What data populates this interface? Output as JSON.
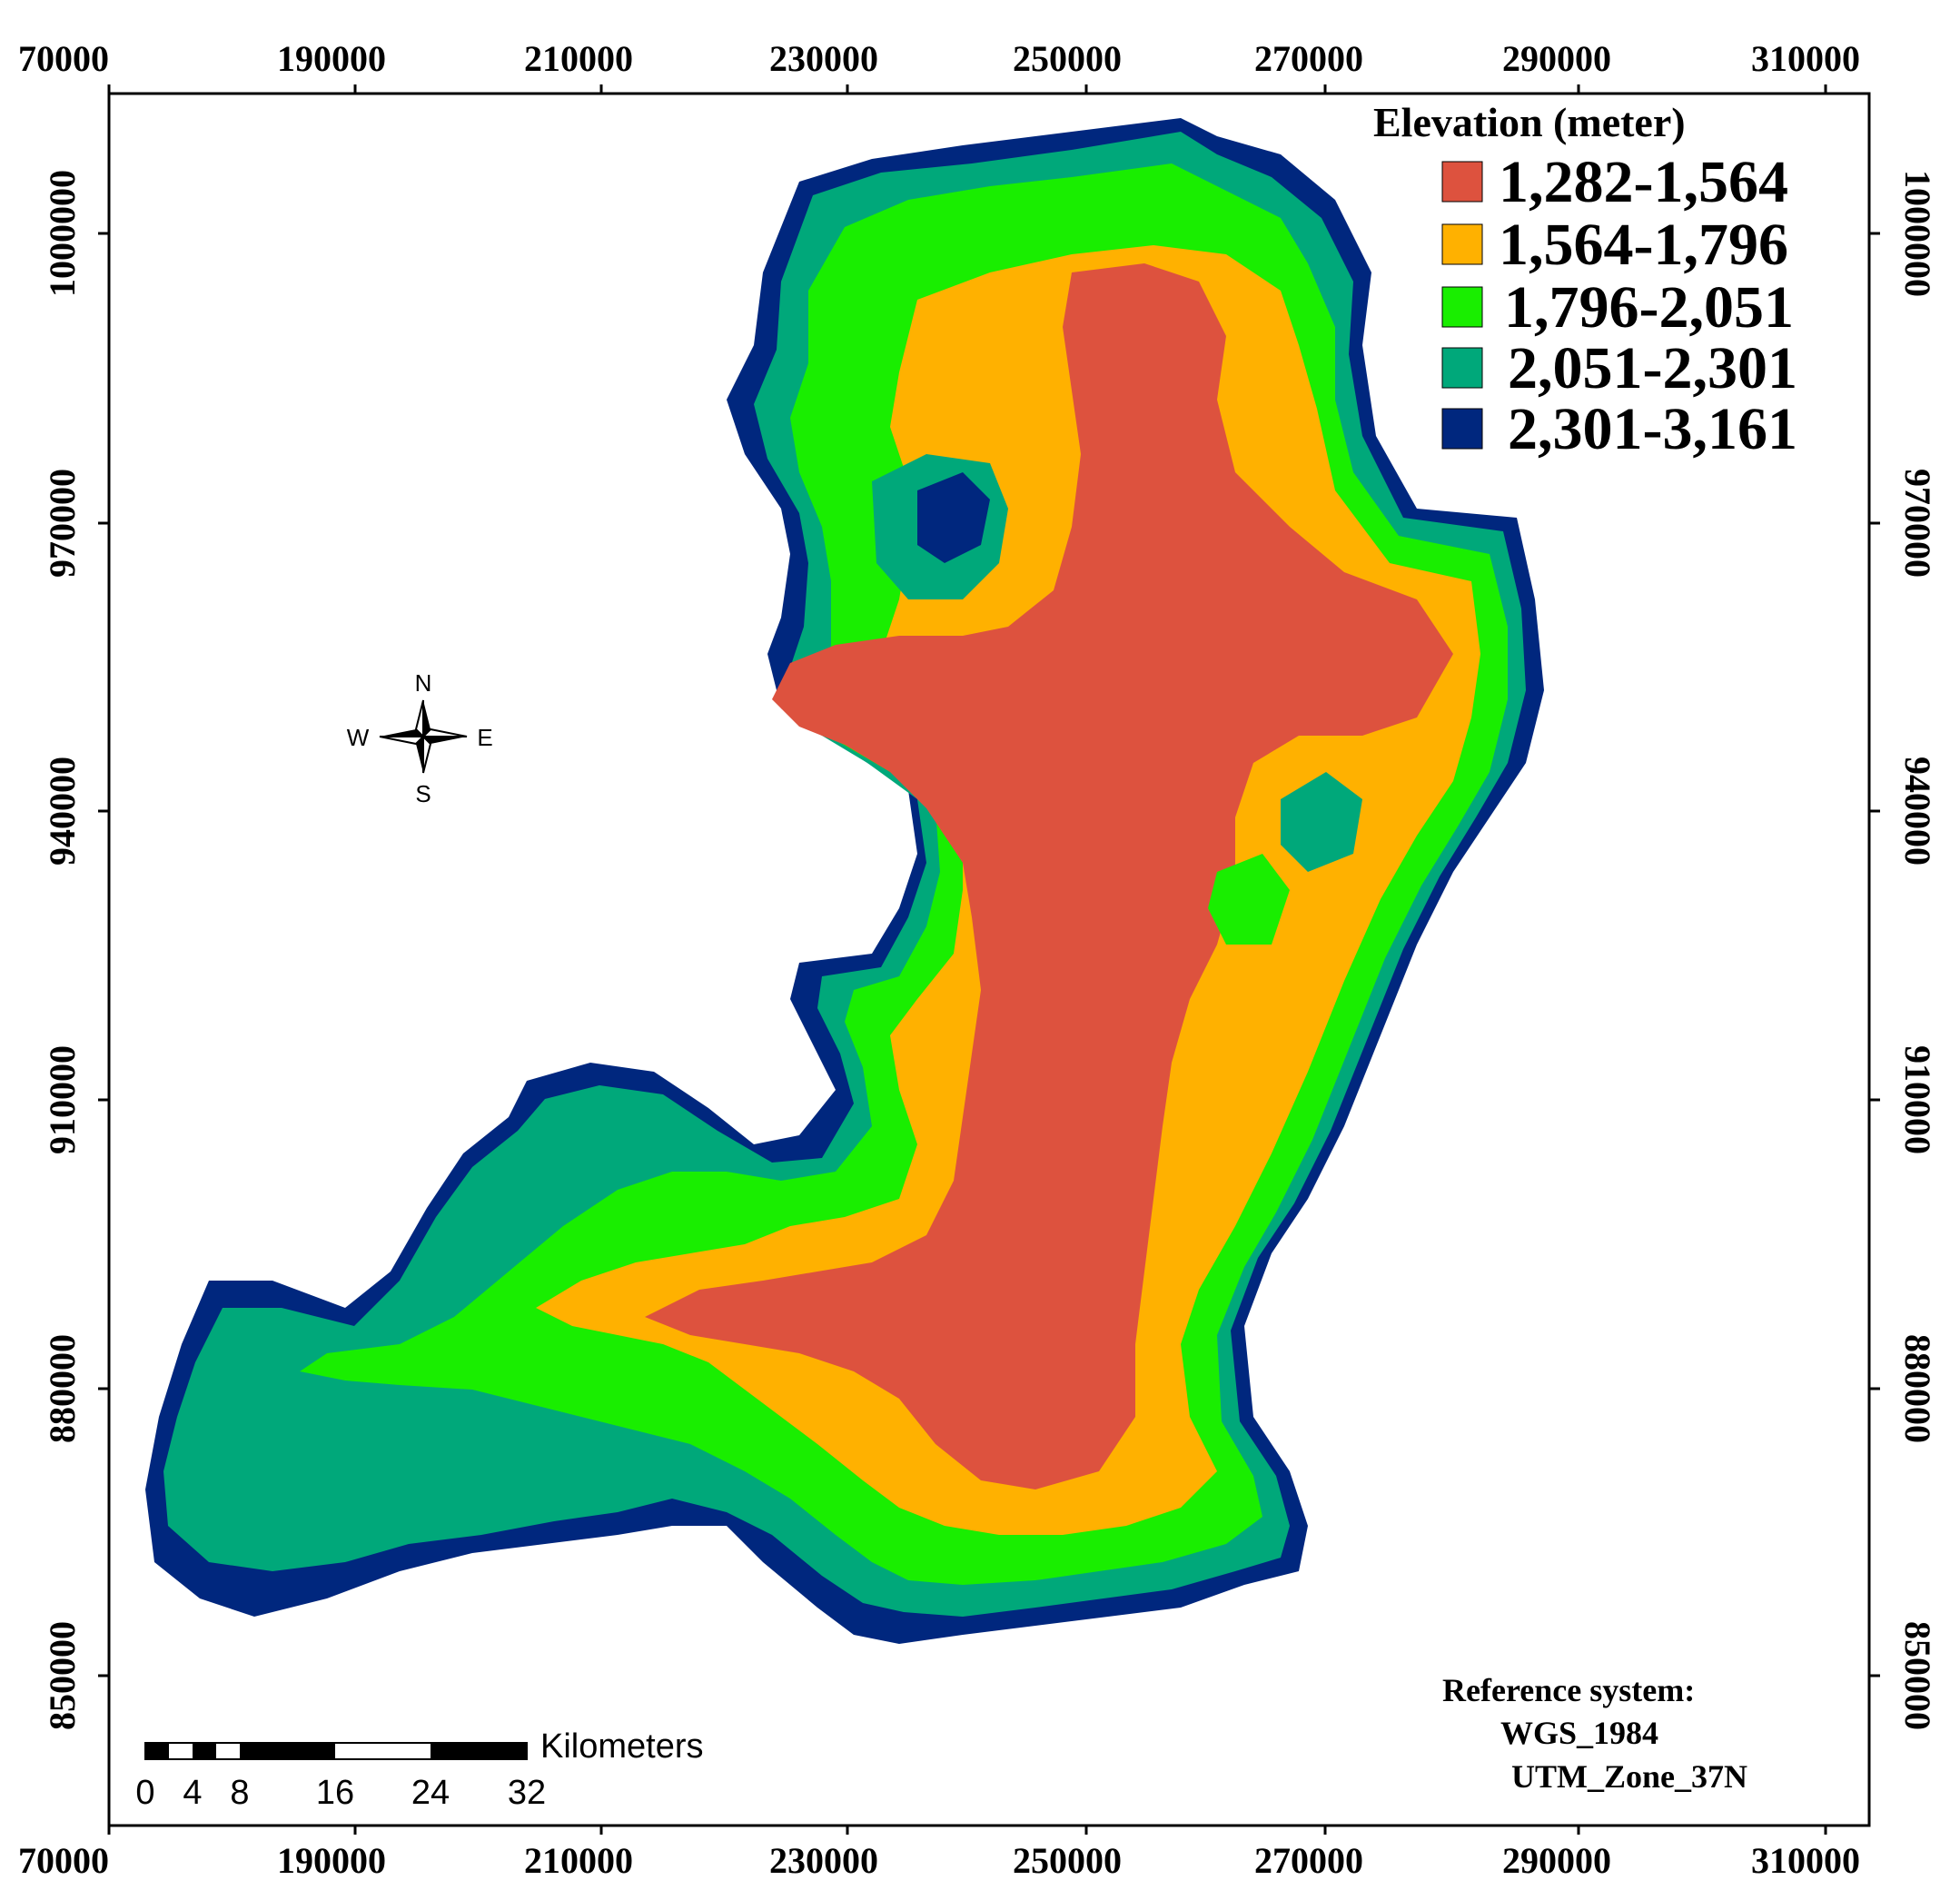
{
  "map": {
    "x_ticks": [
      "70000",
      "190000",
      "210000",
      "230000",
      "250000",
      "270000",
      "290000",
      "310000"
    ],
    "y_ticks": [
      "1000000",
      "970000",
      "940000",
      "910000",
      "880000",
      "850000"
    ],
    "legend": {
      "title": "Elevation (meter)",
      "items": [
        {
          "label": "1,282-1,564",
          "color": "#dd523e"
        },
        {
          "label": "1,564-1,796",
          "color": "#ffb100"
        },
        {
          "label": "1,796-2,051",
          "color": "#19ee00"
        },
        {
          "label": "2,051-2,301",
          "color": "#00a87a"
        },
        {
          "label": "2,301-3,161",
          "color": "#00277e"
        }
      ]
    },
    "compass": {
      "n": "N",
      "s": "S",
      "e": "E",
      "w": "W"
    },
    "scale_bar": {
      "unit": "Kilometers",
      "labels": [
        "0",
        "4",
        "8",
        "16",
        "24",
        "32"
      ]
    },
    "reference": {
      "title": "Reference system:",
      "datum": "WGS_1984",
      "zone": "UTM_Zone_37N"
    }
  }
}
